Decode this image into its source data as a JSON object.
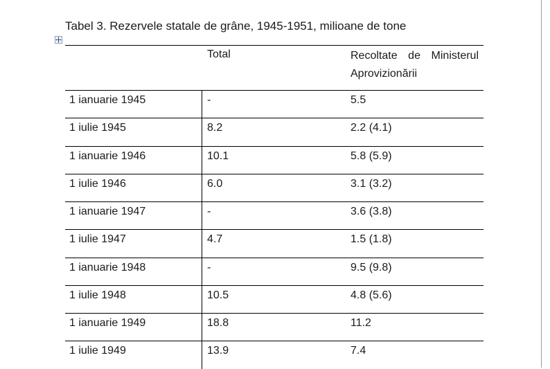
{
  "caption": "Tabel 3. Rezervele statale de grâne, 1945-1951, milioane de tone",
  "icons": {
    "table_move_handle": "four-arrow-move-icon"
  },
  "table": {
    "headers": {
      "date": "",
      "total": "Total",
      "recoltate": "Recoltate de Ministerul Aprovizionării"
    },
    "rows": [
      {
        "date": "1 ianuarie 1945",
        "total": "-",
        "recoltate": "5.5"
      },
      {
        "date": "1 iulie 1945",
        "total": "8.2",
        "recoltate": "2.2 (4.1)"
      },
      {
        "date": "1 ianuarie 1946",
        "total": "10.1",
        "recoltate": "5.8 (5.9)"
      },
      {
        "date": "1 iulie 1946",
        "total": "6.0",
        "recoltate": "3.1 (3.2)"
      },
      {
        "date": "1 ianuarie 1947",
        "total": "-",
        "recoltate": "3.6 (3.8)"
      },
      {
        "date": "1 iulie 1947",
        "total": "4.7",
        "recoltate": "1.5 (1.8)"
      },
      {
        "date": "1 ianuarie 1948",
        "total": "-",
        "recoltate": "9.5 (9.8)"
      },
      {
        "date": "1 iulie 1948",
        "total": "10.5",
        "recoltate": "4.8 (5.6)"
      },
      {
        "date": "1 ianuarie 1949",
        "total": "18.8",
        "recoltate": "11.2"
      },
      {
        "date": "1 iulie 1949",
        "total": "13.9",
        "recoltate": "7.4"
      }
    ]
  }
}
